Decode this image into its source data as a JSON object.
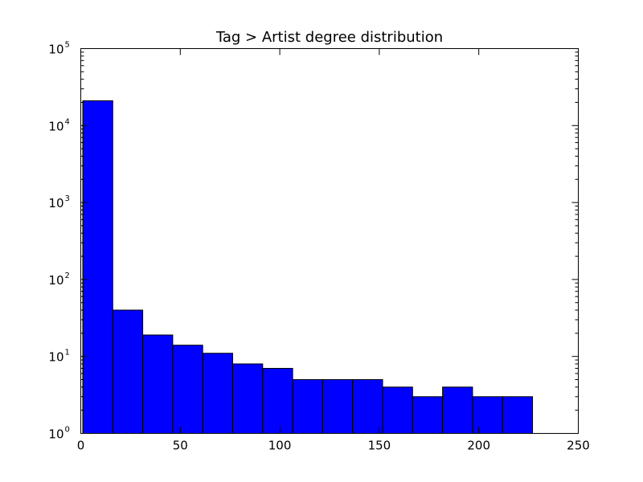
{
  "chart_data": {
    "type": "bar",
    "title": "Tag > Artist degree distribution",
    "xlabel": "",
    "ylabel": "",
    "x_scale": "linear",
    "y_scale": "log",
    "xlim": [
      0,
      250
    ],
    "ylim": [
      1,
      100000
    ],
    "grid": false,
    "bar_color": "#0000ff",
    "edge_color": "#000000",
    "bin_edges": [
      1,
      16.07,
      31.13,
      46.2,
      61.27,
      76.33,
      91.4,
      106.47,
      121.53,
      136.6,
      151.67,
      166.73,
      181.8,
      196.87,
      211.93,
      227
    ],
    "values": [
      21000,
      40,
      19,
      14,
      11,
      8,
      7,
      5,
      5,
      5,
      4,
      3,
      4,
      3,
      3
    ],
    "x_ticks": [
      {
        "value": 0,
        "label": "0"
      },
      {
        "value": 50,
        "label": "50"
      },
      {
        "value": 100,
        "label": "100"
      },
      {
        "value": 150,
        "label": "150"
      },
      {
        "value": 200,
        "label": "200"
      },
      {
        "value": 250,
        "label": "250"
      }
    ],
    "y_ticks": [
      {
        "value": 1,
        "base": "10",
        "exp": "0"
      },
      {
        "value": 10,
        "base": "10",
        "exp": "1"
      },
      {
        "value": 100,
        "base": "10",
        "exp": "2"
      },
      {
        "value": 1000,
        "base": "10",
        "exp": "3"
      },
      {
        "value": 10000,
        "base": "10",
        "exp": "4"
      },
      {
        "value": 100000,
        "base": "10",
        "exp": "5"
      }
    ]
  }
}
